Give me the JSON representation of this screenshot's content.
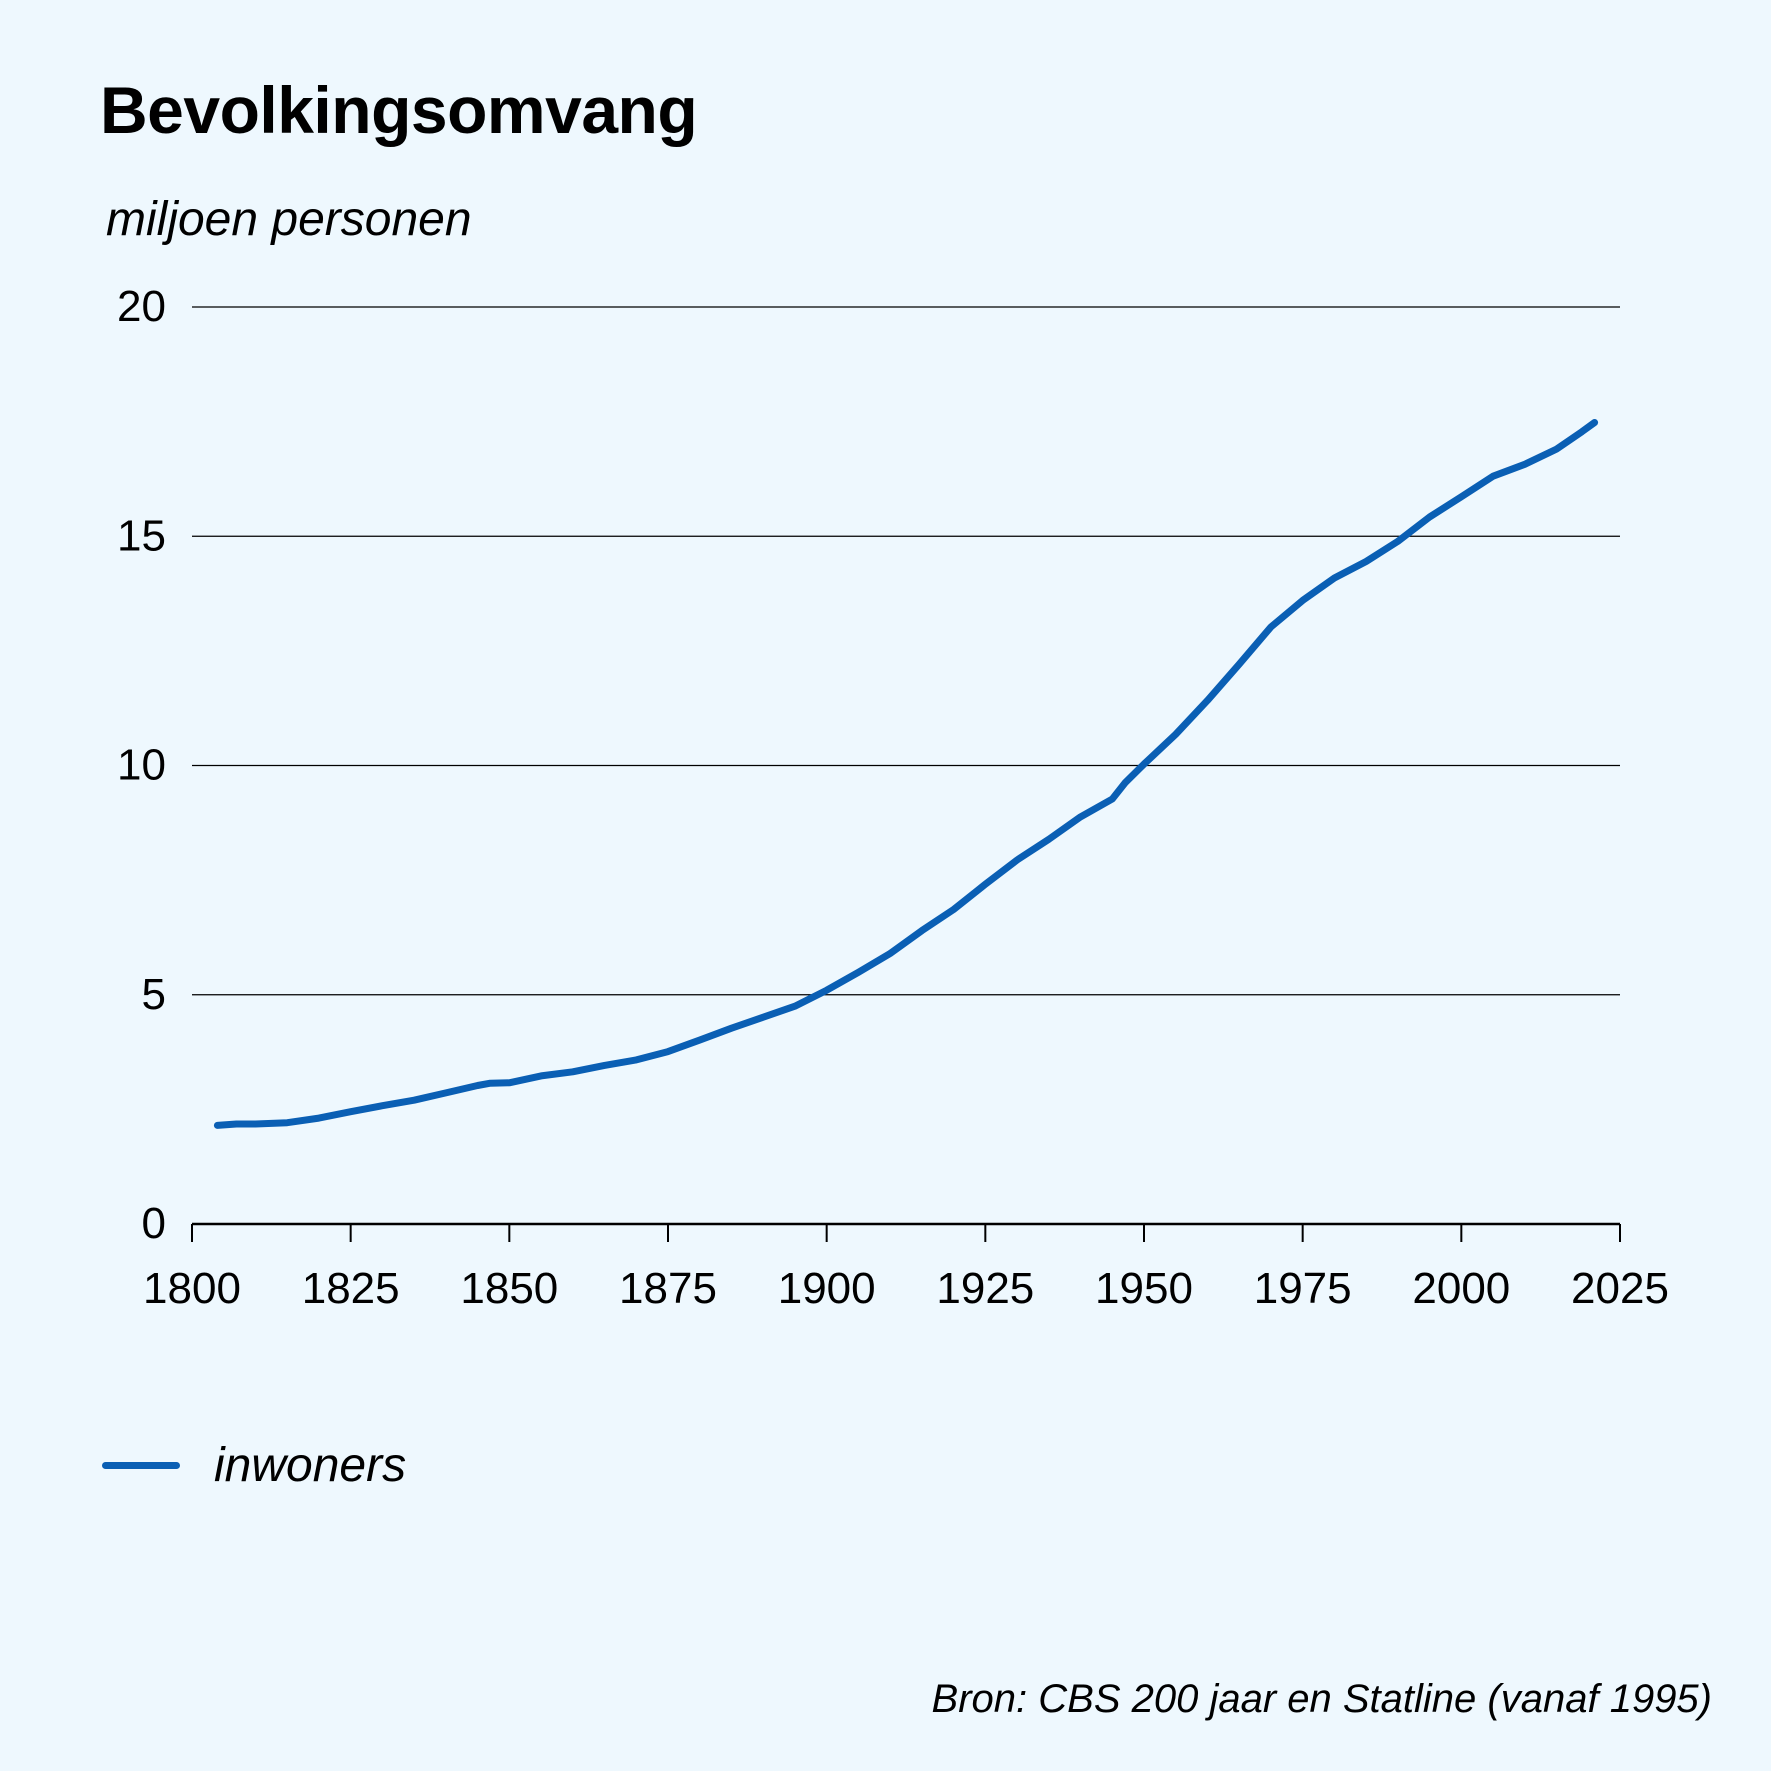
{
  "chart_data": {
    "type": "line",
    "title": "Bevolkingsomvang",
    "ylabel": "miljoen personen",
    "xlabel": "",
    "xlim": [
      1800,
      2025
    ],
    "ylim": [
      0,
      20
    ],
    "x_ticks": [
      1800,
      1825,
      1850,
      1875,
      1900,
      1925,
      1950,
      1975,
      2000,
      2025
    ],
    "y_ticks": [
      0,
      5,
      10,
      15,
      20
    ],
    "grid": true,
    "legend_position": "bottom-left",
    "series": [
      {
        "name": "inwoners",
        "color": "#0a5fb4",
        "points": [
          [
            1804,
            2.15
          ],
          [
            1807,
            2.18
          ],
          [
            1810,
            2.18
          ],
          [
            1815,
            2.21
          ],
          [
            1820,
            2.31
          ],
          [
            1825,
            2.45
          ],
          [
            1830,
            2.58
          ],
          [
            1835,
            2.7
          ],
          [
            1840,
            2.86
          ],
          [
            1845,
            3.02
          ],
          [
            1847,
            3.07
          ],
          [
            1850,
            3.08
          ],
          [
            1855,
            3.23
          ],
          [
            1860,
            3.32
          ],
          [
            1865,
            3.46
          ],
          [
            1870,
            3.58
          ],
          [
            1875,
            3.76
          ],
          [
            1880,
            4.01
          ],
          [
            1885,
            4.27
          ],
          [
            1890,
            4.51
          ],
          [
            1895,
            4.75
          ],
          [
            1900,
            5.1
          ],
          [
            1905,
            5.49
          ],
          [
            1910,
            5.9
          ],
          [
            1915,
            6.4
          ],
          [
            1920,
            6.86
          ],
          [
            1925,
            7.41
          ],
          [
            1930,
            7.94
          ],
          [
            1935,
            8.39
          ],
          [
            1940,
            8.88
          ],
          [
            1945,
            9.27
          ],
          [
            1947,
            9.62
          ],
          [
            1950,
            10.03
          ],
          [
            1955,
            10.68
          ],
          [
            1960,
            11.42
          ],
          [
            1965,
            12.21
          ],
          [
            1970,
            13.02
          ],
          [
            1975,
            13.6
          ],
          [
            1980,
            14.09
          ],
          [
            1985,
            14.45
          ],
          [
            1990,
            14.89
          ],
          [
            1995,
            15.42
          ],
          [
            2000,
            15.86
          ],
          [
            2005,
            16.31
          ],
          [
            2010,
            16.57
          ],
          [
            2015,
            16.9
          ],
          [
            2019,
            17.28
          ],
          [
            2021,
            17.48
          ]
        ]
      }
    ]
  },
  "source": "Bron: CBS 200 jaar en Statline (vanaf 1995)"
}
